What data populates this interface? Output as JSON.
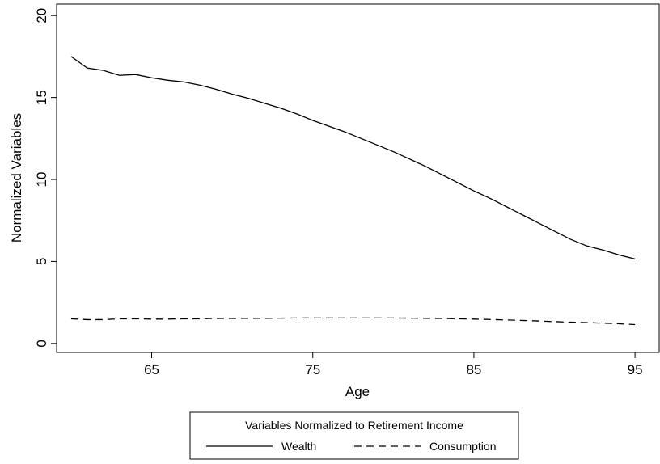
{
  "chart_data": {
    "type": "line",
    "xlabel": "Age",
    "ylabel": "Normalized Variables",
    "x": [
      60,
      61,
      62,
      63,
      64,
      65,
      66,
      67,
      68,
      69,
      70,
      71,
      72,
      73,
      74,
      75,
      76,
      77,
      78,
      79,
      80,
      81,
      82,
      83,
      84,
      85,
      86,
      87,
      88,
      89,
      90,
      91,
      92,
      93,
      94,
      95
    ],
    "series": [
      {
        "name": "Wealth",
        "color": "#000000",
        "dash": "solid",
        "values": [
          17.5,
          16.8,
          16.65,
          16.35,
          16.4,
          16.2,
          16.05,
          15.95,
          15.75,
          15.5,
          15.2,
          14.95,
          14.65,
          14.35,
          14.0,
          13.6,
          13.25,
          12.9,
          12.5,
          12.1,
          11.7,
          11.25,
          10.8,
          10.3,
          9.8,
          9.3,
          8.85,
          8.35,
          7.85,
          7.35,
          6.85,
          6.35,
          5.95,
          5.7,
          5.4,
          5.15
        ]
      },
      {
        "name": "Consumption",
        "color": "#000000",
        "dash": "dashed",
        "values": [
          1.5,
          1.45,
          1.45,
          1.5,
          1.5,
          1.48,
          1.48,
          1.5,
          1.5,
          1.52,
          1.52,
          1.53,
          1.53,
          1.54,
          1.55,
          1.55,
          1.55,
          1.55,
          1.55,
          1.55,
          1.55,
          1.54,
          1.53,
          1.52,
          1.5,
          1.48,
          1.46,
          1.43,
          1.4,
          1.37,
          1.33,
          1.3,
          1.27,
          1.24,
          1.2,
          1.15
        ]
      }
    ],
    "xlim": [
      59.1,
      96.5
    ],
    "xticks": [
      65,
      75,
      85,
      95
    ],
    "ylim": [
      -0.55,
      20.7
    ],
    "yticks": [
      0,
      5,
      10,
      15,
      20
    ],
    "grid": false,
    "legend_title": "Variables Normalized to Retirement Income",
    "legend_position": "bottom"
  }
}
